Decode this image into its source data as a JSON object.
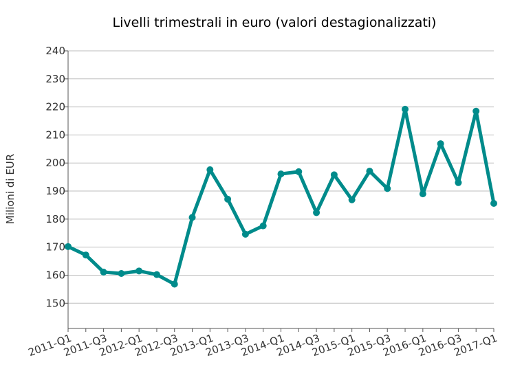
{
  "chart_data": {
    "type": "line",
    "title": "Livelli trimestrali in euro (valori destagionalizzati)",
    "xlabel": "",
    "ylabel": "Milioni di EUR",
    "ylim": [
      141,
      240
    ],
    "yticks": [
      150,
      160,
      170,
      180,
      190,
      200,
      210,
      220,
      230,
      240
    ],
    "grid": true,
    "legend": "none",
    "x": [
      "2011-Q1",
      "2011-Q2",
      "2011-Q3",
      "2011-Q4",
      "2012-Q1",
      "2012-Q2",
      "2012-Q3",
      "2012-Q4",
      "2013-Q1",
      "2013-Q2",
      "2013-Q3",
      "2013-Q4",
      "2014-Q1",
      "2014-Q2",
      "2014-Q3",
      "2014-Q4",
      "2015-Q1",
      "2015-Q2",
      "2015-Q3",
      "2015-Q4",
      "2016-Q1",
      "2016-Q2",
      "2016-Q3",
      "2016-Q4",
      "2017-Q1"
    ],
    "xtick_labels": [
      "2011-Q1",
      "2011-Q3",
      "2012-Q1",
      "2012-Q3",
      "2013-Q1",
      "2013-Q3",
      "2014-Q1",
      "2014-Q3",
      "2015-Q1",
      "2015-Q3",
      "2016-Q1",
      "2016-Q3",
      "2017-Q1"
    ],
    "series": [
      {
        "name": "",
        "color": "#008b8b",
        "values": [
          170.2,
          167.2,
          161.1,
          160.6,
          161.5,
          160.2,
          156.8,
          180.6,
          197.6,
          187.1,
          174.6,
          177.6,
          196.1,
          196.9,
          182.3,
          195.8,
          186.9,
          197.1,
          190.9,
          219.2,
          189.0,
          206.9,
          193.0,
          218.5,
          185.6
        ]
      }
    ]
  }
}
